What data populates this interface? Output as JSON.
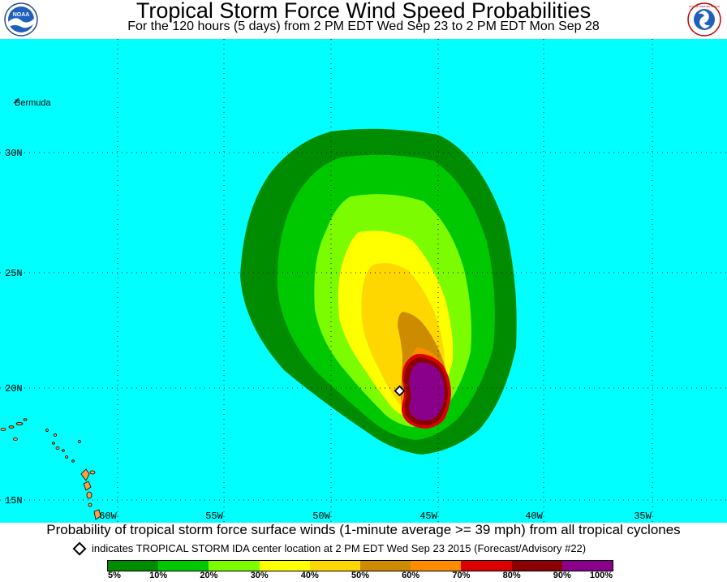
{
  "header": {
    "title": "Tropical Storm Force Wind Speed Probabilities",
    "subtitle": "For the 120 hours (5 days) from 2 PM EDT Wed Sep 23 to 2 PM EDT Mon Sep 28",
    "logo_left_text": "NOAA",
    "logo_right_text": "NATIONAL WEATHER SERVICE"
  },
  "map": {
    "ocean_color": "#00ffff",
    "land_color": "#ffa040",
    "lat_labels": [
      "30N",
      "25N",
      "20N",
      "15N"
    ],
    "lon_labels": [
      "60W",
      "55W",
      "50W",
      "45W",
      "40W",
      "35W"
    ],
    "place_label": "Bermuda",
    "storm_marker_icon": "diamond-icon"
  },
  "footer": {
    "description": "Probability of tropical storm force surface winds (1-minute average >= 39 mph) from all tropical cyclones",
    "marker_note": "indicates TROPICAL STORM IDA center location at 2 PM EDT Wed Sep 23 2015 (Forecast/Advisory #22)"
  },
  "legend": {
    "colors": [
      "#008c00",
      "#00c800",
      "#7cfc00",
      "#ffff00",
      "#ffd700",
      "#cd8c00",
      "#ff8c00",
      "#dc0000",
      "#8b0000",
      "#8b008b"
    ],
    "labels": [
      "5%",
      "10%",
      "20%",
      "30%",
      "40%",
      "50%",
      "60%",
      "70%",
      "80%",
      "90%",
      "100%"
    ]
  }
}
